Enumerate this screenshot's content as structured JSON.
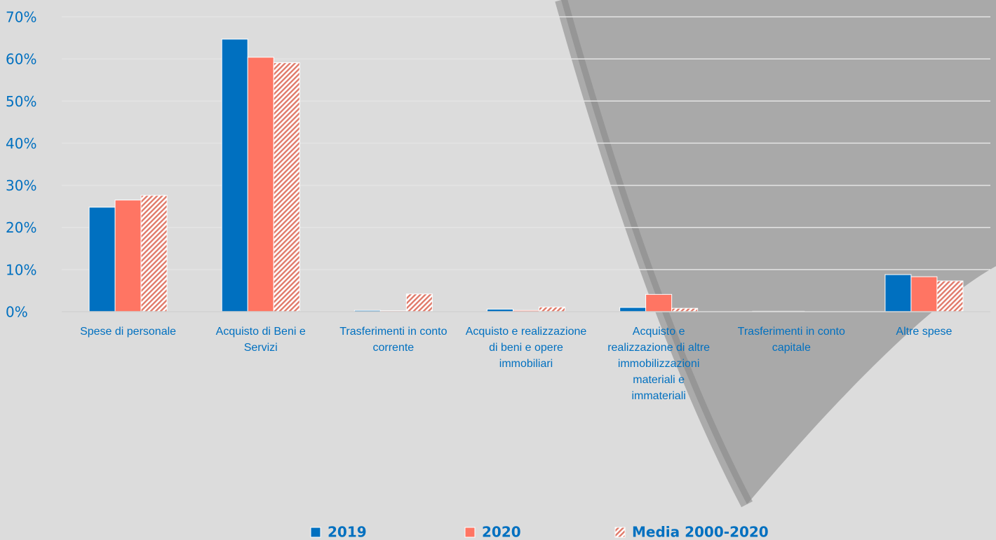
{
  "chart_data": {
    "type": "bar",
    "categories": [
      "Spese di personale",
      "Acquisto di Beni e Servizi",
      "Trasferimenti in conto corrente",
      "Acquisto e realizzazione  di beni e opere immobiliari",
      "Acquisto e realizzazione di altre immobilizzazioni materiali e immateriali",
      "Trasferimenti in conto capitale",
      "Altre spese"
    ],
    "series": [
      {
        "name": "2019",
        "color": "#0070c0",
        "values": [
          24.8,
          64.7,
          0.3,
          0.6,
          1.0,
          0.1,
          8.8
        ]
      },
      {
        "name": "2020",
        "color": "#ff7563",
        "values": [
          26.5,
          60.4,
          0.2,
          0.3,
          4.1,
          0.1,
          8.3
        ]
      },
      {
        "name": "Media 2000-2020",
        "color": "#e07a6a",
        "fill_style": "hatch",
        "values": [
          27.6,
          59.1,
          4.2,
          1.1,
          0.8,
          0,
          7.3
        ]
      }
    ],
    "ylim": [
      0,
      70
    ],
    "yticks": [
      {
        "value": 0,
        "label": "0%"
      },
      {
        "value": 10,
        "label": "10%"
      },
      {
        "value": 20,
        "label": "20%"
      },
      {
        "value": 30,
        "label": "30%"
      },
      {
        "value": 40,
        "label": "40%"
      },
      {
        "value": 50,
        "label": "50%"
      },
      {
        "value": 60,
        "label": "60%"
      },
      {
        "value": 70,
        "label": "70%"
      }
    ],
    "grid": true,
    "legend": "bottom"
  }
}
